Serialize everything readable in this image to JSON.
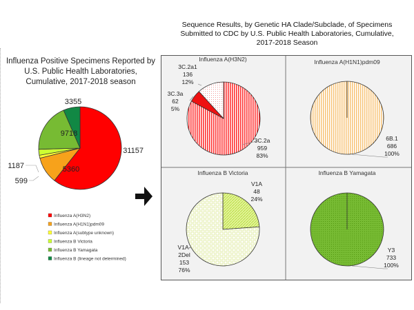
{
  "left_title": [
    "Influenza Positive Specimens Reported by",
    "U.S. Public Health Laboratories,",
    "Cumulative, 2017-2018 season"
  ],
  "right_title": [
    "Sequence Results, by Genetic HA Clade/Subclade, of Specimens",
    "Submitted to CDC by U.S. Public Health Laboratories, Cumulative,",
    "2017-2018 Season"
  ],
  "chart_data": [
    {
      "type": "pie",
      "title": "Influenza Positive Specimens Reported by U.S. Public Health Laboratories, Cumulative, 2017-2018 season",
      "legend_position": "bottom",
      "categories": [
        "Influenza A(H3N2)",
        "Influenza A(H1N1)pdm09",
        "Influenza A(subtype unknown)",
        "Influenza B Victoria",
        "Influenza B Yamagata",
        "Influenza B (lineage not determined)"
      ],
      "values": [
        31157,
        5360,
        599,
        1187,
        9718,
        3355
      ],
      "colors": [
        "#ff0000",
        "#f7a21b",
        "#ffff33",
        "#ccff33",
        "#77bb33",
        "#118844"
      ]
    },
    {
      "type": "pie",
      "title": "Influenza A(H3N2)",
      "categories": [
        "3C.2a",
        "3C.3a",
        "3C.2a1"
      ],
      "values": [
        959,
        62,
        136
      ],
      "percents": [
        "83%",
        "5%",
        "12%"
      ],
      "colors": [
        "#ff4444",
        "#ee1111",
        "#ffdddd"
      ]
    },
    {
      "type": "pie",
      "title": "Influenza A(H1N1)pdm09",
      "categories": [
        "6B.1"
      ],
      "values": [
        686
      ],
      "percents": [
        "100%"
      ],
      "colors": [
        "#ffcc77"
      ]
    },
    {
      "type": "pie",
      "title": "Influenza B Victoria",
      "categories": [
        "V1A",
        "V1A-2Del"
      ],
      "category_lines": [
        [
          "V1A"
        ],
        [
          "V1A-",
          "2Del"
        ]
      ],
      "values": [
        48,
        153
      ],
      "percents": [
        "24%",
        "76%"
      ],
      "colors": [
        "#ccee66",
        "#f4f8c0"
      ]
    },
    {
      "type": "pie",
      "title": "Influenza B Yamagata",
      "categories": [
        "Y3"
      ],
      "values": [
        733
      ],
      "percents": [
        "100%"
      ],
      "colors": [
        "#66aa22"
      ]
    }
  ]
}
